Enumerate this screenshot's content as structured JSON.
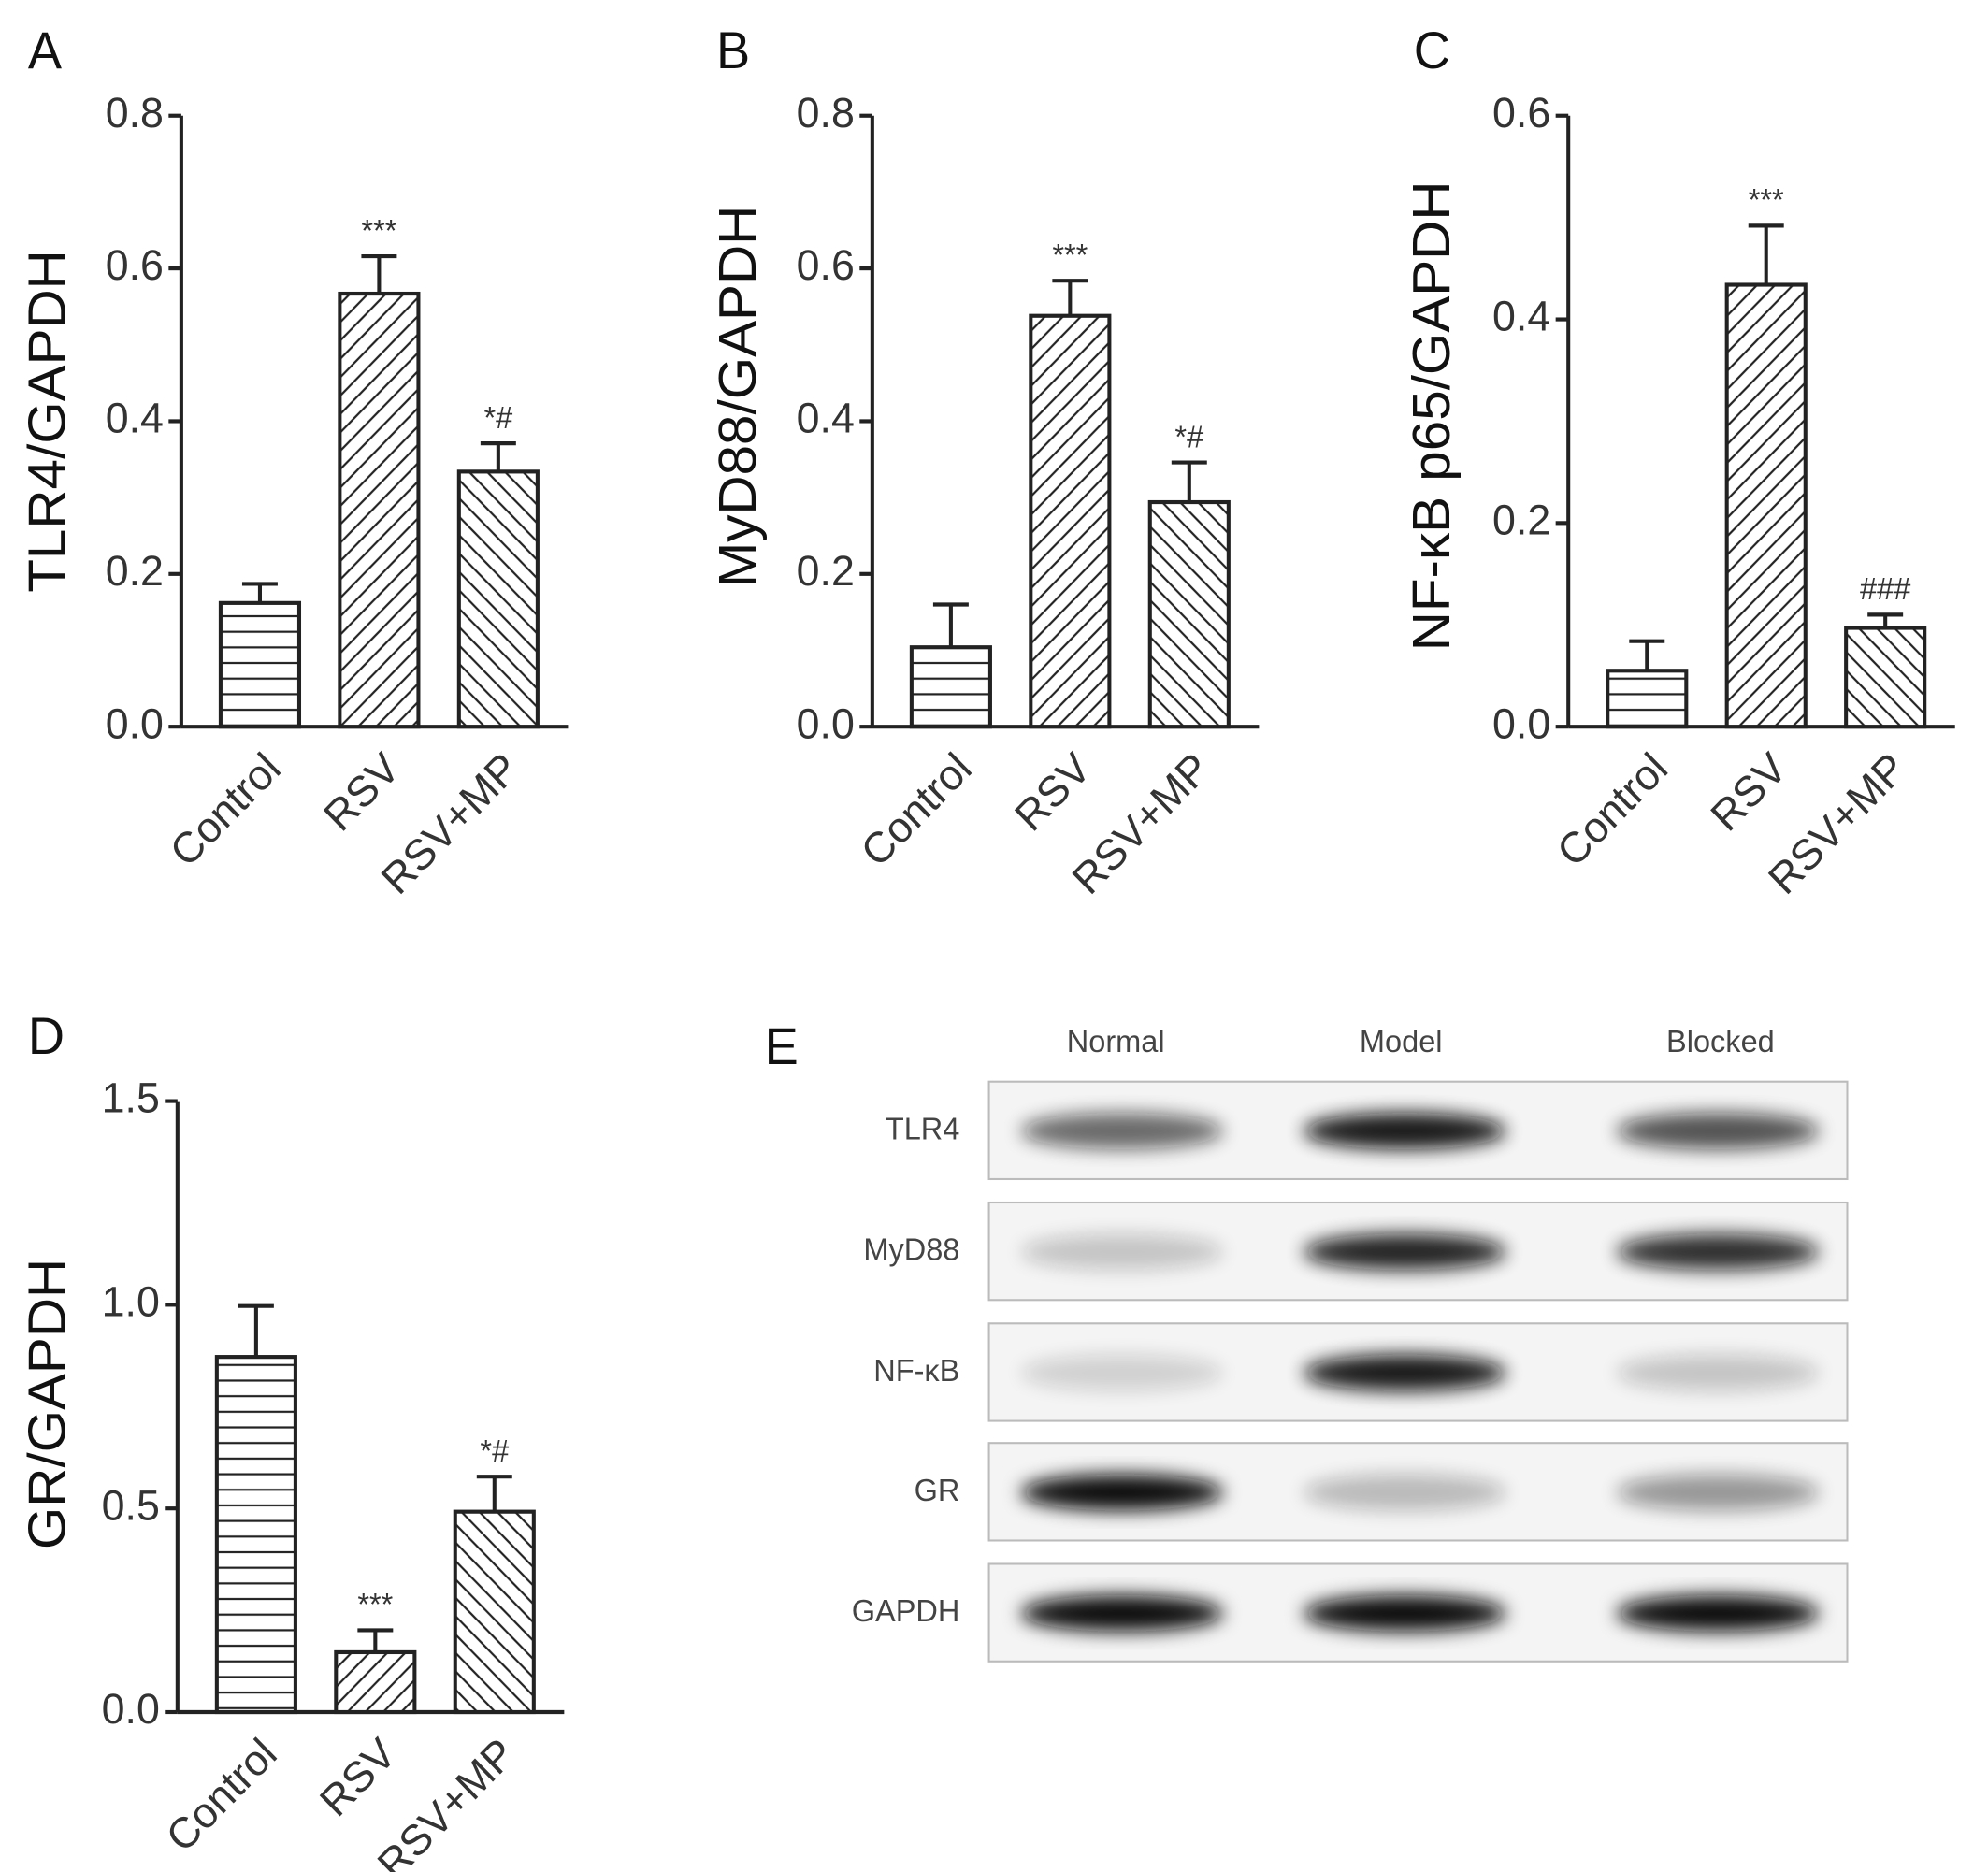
{
  "chart_data": [
    {
      "type": "bar",
      "panel_label": "A",
      "y_label": "TLR4/GAPDH",
      "categories": [
        "Control",
        "RSV",
        "RSV+MP"
      ],
      "values": [
        0.162,
        0.567,
        0.334
      ],
      "errors": [
        0.025,
        0.049,
        0.037
      ],
      "significance": [
        null,
        "***",
        "*#"
      ],
      "hatches": [
        "horizontal",
        "forward",
        "backward"
      ],
      "color": "#222222",
      "ylim": [
        0,
        0.8
      ],
      "yticks": [
        {
          "value": 0,
          "label": "0.0"
        },
        0.2,
        0.4,
        0.6,
        0.8
      ]
    },
    {
      "type": "bar",
      "panel_label": "B",
      "y_label": "MyD88/GAPDH",
      "categories": [
        "Control",
        "RSV",
        "RSV+MP"
      ],
      "values": [
        0.104,
        0.538,
        0.294
      ],
      "errors": [
        0.056,
        0.046,
        0.052
      ],
      "significance": [
        null,
        "***",
        "*#"
      ],
      "hatches": [
        "horizontal",
        "forward",
        "backward"
      ],
      "color": "#222222",
      "ylim": [
        0,
        0.8
      ],
      "yticks": [
        {
          "value": 0,
          "label": "0.0"
        },
        0.2,
        0.4,
        0.6,
        0.8
      ]
    },
    {
      "type": "bar",
      "panel_label": "C",
      "y_label": "NF-κB p65/GAPDH",
      "categories": [
        "Control",
        "RSV",
        "RSV+MP"
      ],
      "values": [
        0.055,
        0.434,
        0.097
      ],
      "errors": [
        0.029,
        0.058,
        0.013
      ],
      "significance": [
        null,
        "***",
        "###"
      ],
      "hatches": [
        "horizontal",
        "forward",
        "backward"
      ],
      "color": "#222222",
      "ylim": [
        0,
        0.6
      ],
      "yticks": [
        {
          "value": 0,
          "label": "0.0"
        },
        0.2,
        0.4,
        0.6
      ]
    },
    {
      "type": "bar",
      "panel_label": "D",
      "y_label": "GR/GAPDH",
      "categories": [
        "Control",
        "RSV",
        "RSV+MP"
      ],
      "values": [
        0.872,
        0.147,
        0.492
      ],
      "errors": [
        0.125,
        0.054,
        0.086
      ],
      "significance": [
        null,
        "***",
        "*#"
      ],
      "hatches": [
        "horizontal",
        "forward",
        "backward"
      ],
      "color": "#222222",
      "ylim": [
        0,
        1.5
      ],
      "yticks": [
        {
          "value": 0,
          "label": "0.0"
        },
        0.5,
        {
          "value": 1,
          "label": "1.0"
        },
        1.5
      ]
    }
  ],
  "blot": {
    "panel_label": "E",
    "columns": [
      "Normal",
      "Model",
      "Blocked"
    ],
    "rows": [
      "TLR4",
      "MyD88",
      "NF-κB",
      "GR",
      "GAPDH"
    ]
  }
}
